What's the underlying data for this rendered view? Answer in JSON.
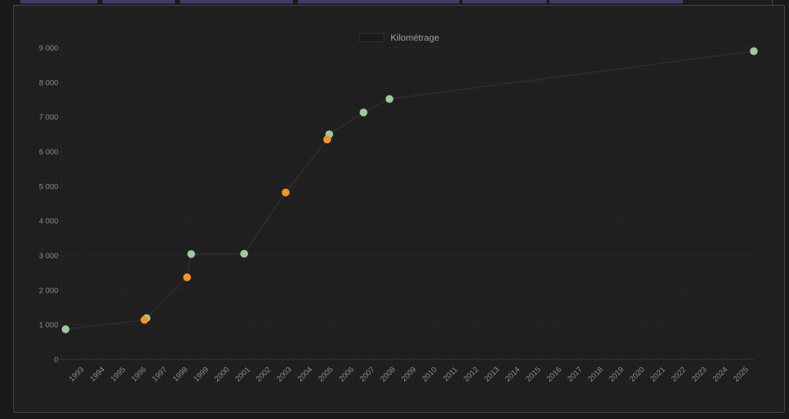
{
  "colors": {
    "page_background": "#191919",
    "card_background": "#1f1f1f",
    "card_border": "#4d4d4d",
    "tab_fragment": "#3c3c69",
    "grid_horizontal": "#272727",
    "grid_vertical": "#242424",
    "axis_line": "#3a3a3a",
    "tick_label": "#8d8d8d",
    "legend_text": "#a0a0a0",
    "line": "#2d2d2d",
    "marker_green": "#9cca9c",
    "marker_orange": "#f7941d"
  },
  "legend": {
    "label": "Kilométrage"
  },
  "chart_data": {
    "type": "line",
    "title": "",
    "legend_entries": [
      "Kilométrage"
    ],
    "legend_position": "top",
    "grid": true,
    "x_axis": {
      "type": "time-years",
      "tick_labels": [
        "1993",
        "1994",
        "1995",
        "1996",
        "1997",
        "1998",
        "1999",
        "2000",
        "2001",
        "2002",
        "2003",
        "2004",
        "2005",
        "2006",
        "2007",
        "2008",
        "2009",
        "2010",
        "2011",
        "2012",
        "2013",
        "2014",
        "2015",
        "2016",
        "2017",
        "2018",
        "2019",
        "2020",
        "2021",
        "2022",
        "2023",
        "2024",
        "2025"
      ]
    },
    "y_axis": {
      "min": 0,
      "max": 9000,
      "step": 1000,
      "tick_labels": [
        "0",
        "1 000",
        "2 000",
        "3 000",
        "4 000",
        "5 000",
        "6 000",
        "7 000",
        "8 000",
        "9 000"
      ]
    },
    "series": [
      {
        "name": "Kilométrage",
        "line_color": "#2d2d2d",
        "points": [
          {
            "x_year": 1992.2,
            "value": 870,
            "marker": "green"
          },
          {
            "x_year": 1996.0,
            "value": 1140,
            "marker": "orange"
          },
          {
            "x_year": 1996.1,
            "value": 1190,
            "marker": "green"
          },
          {
            "x_year": 1998.05,
            "value": 2370,
            "marker": "orange"
          },
          {
            "x_year": 1998.25,
            "value": 3040,
            "marker": "green"
          },
          {
            "x_year": 2000.8,
            "value": 3050,
            "marker": "green"
          },
          {
            "x_year": 2002.8,
            "value": 4820,
            "marker": "orange"
          },
          {
            "x_year": 2004.8,
            "value": 6350,
            "marker": "orange"
          },
          {
            "x_year": 2004.9,
            "value": 6500,
            "marker": "green"
          },
          {
            "x_year": 2006.55,
            "value": 7130,
            "marker": "green"
          },
          {
            "x_year": 2007.8,
            "value": 7520,
            "marker": "green"
          },
          {
            "x_year": 2025.35,
            "value": 8900,
            "marker": "green"
          }
        ]
      }
    ],
    "marker_colors": {
      "green": "#9cca9c",
      "orange": "#f7941d"
    }
  }
}
